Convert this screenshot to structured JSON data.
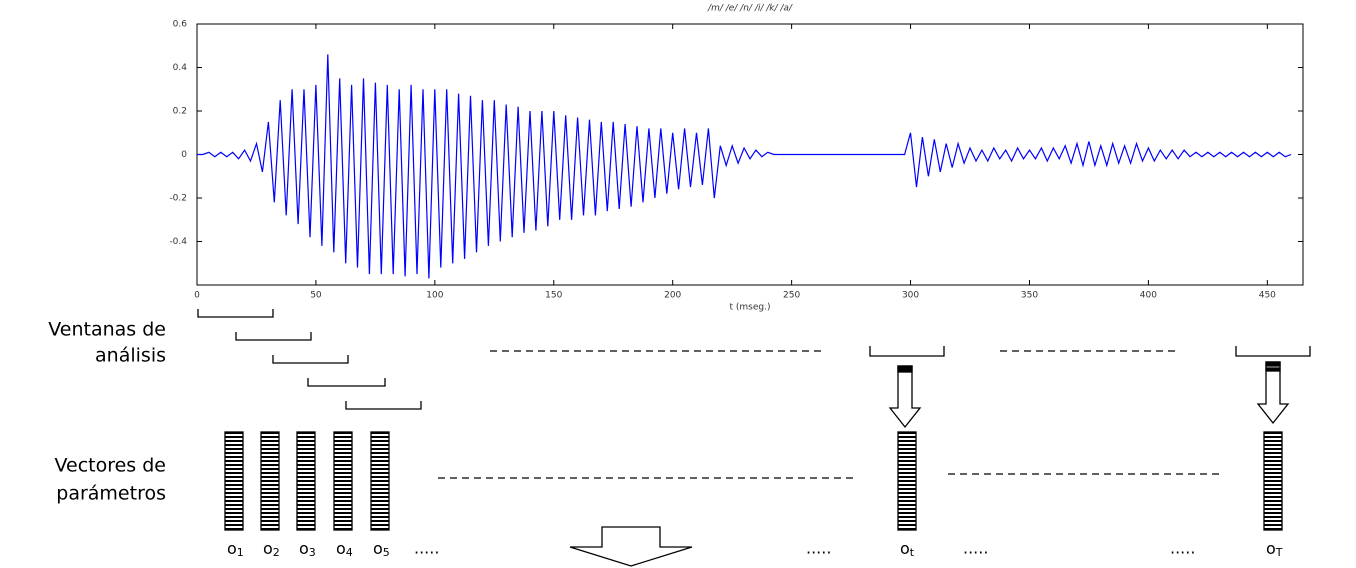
{
  "chart_data": {
    "type": "line",
    "title": "/m/ /e/ /n/ /i/ /k/ /a/",
    "x_label": "t (mseg.)",
    "xlim": [
      0,
      465
    ],
    "ylim": [
      -0.6,
      0.6
    ],
    "xticks": [
      0,
      50,
      100,
      150,
      200,
      250,
      300,
      350,
      400,
      450
    ],
    "yticks": [
      0.6,
      0.4,
      0.2,
      0,
      -0.2,
      -0.4
    ],
    "series": [
      {
        "color": "#0000ff",
        "x": [
          0,
          2.5,
          5,
          7.5,
          10,
          12.5,
          15,
          17.5,
          20,
          22.5,
          25,
          27.5,
          30,
          32.5,
          35,
          37.5,
          40,
          42.5,
          45,
          47.5,
          50,
          52.5,
          55,
          57.5,
          60,
          62.5,
          65,
          67.5,
          70,
          72.5,
          75,
          77.5,
          80,
          82.5,
          85,
          87.5,
          90,
          92.5,
          95,
          97.5,
          100,
          102.5,
          105,
          107.5,
          110,
          112.5,
          115,
          117.5,
          120,
          122.5,
          125,
          127.5,
          130,
          132.5,
          135,
          137.5,
          140,
          142.5,
          145,
          147.5,
          150,
          152.5,
          155,
          157.5,
          160,
          162.5,
          165,
          167.5,
          170,
          172.5,
          175,
          177.5,
          180,
          182.5,
          185,
          187.5,
          190,
          192.5,
          195,
          197.5,
          200,
          202.5,
          205,
          207.5,
          210,
          212.5,
          215,
          217.5,
          220,
          222.5,
          225,
          227.5,
          230,
          232.5,
          235,
          237.5,
          240,
          242.5,
          245,
          247.5,
          250,
          252.5,
          255,
          257.5,
          260,
          262.5,
          265,
          267.5,
          270,
          272.5,
          275,
          277.5,
          280,
          282.5,
          285,
          287.5,
          290,
          292.5,
          295,
          297.5,
          300,
          302.5,
          305,
          307.5,
          310,
          312.5,
          315,
          317.5,
          320,
          322.5,
          325,
          327.5,
          330,
          332.5,
          335,
          337.5,
          340,
          342.5,
          345,
          347.5,
          350,
          352.5,
          355,
          357.5,
          360,
          362.5,
          365,
          367.5,
          370,
          372.5,
          375,
          377.5,
          380,
          382.5,
          385,
          387.5,
          390,
          392.5,
          395,
          397.5,
          400,
          402.5,
          405,
          407.5,
          410,
          412.5,
          415,
          417.5,
          420,
          422.5,
          425,
          427.5,
          430,
          432.5,
          435,
          437.5,
          440,
          442.5,
          445,
          447.5,
          450,
          452.5,
          455,
          457.5,
          460
        ],
        "values": [
          0,
          0,
          0.01,
          -0.01,
          0.01,
          -0.01,
          0.01,
          -0.02,
          0.02,
          -0.03,
          0.05,
          -0.08,
          0.15,
          -0.22,
          0.25,
          -0.28,
          0.3,
          -0.32,
          0.3,
          -0.38,
          0.32,
          -0.42,
          0.46,
          -0.45,
          0.35,
          -0.5,
          0.32,
          -0.52,
          0.35,
          -0.55,
          0.33,
          -0.55,
          0.32,
          -0.55,
          0.3,
          -0.56,
          0.32,
          -0.55,
          0.3,
          -0.57,
          0.3,
          -0.52,
          0.3,
          -0.5,
          0.28,
          -0.48,
          0.27,
          -0.45,
          0.25,
          -0.42,
          0.25,
          -0.4,
          0.23,
          -0.38,
          0.22,
          -0.36,
          0.2,
          -0.35,
          0.2,
          -0.33,
          0.2,
          -0.3,
          0.18,
          -0.3,
          0.17,
          -0.28,
          0.16,
          -0.28,
          0.15,
          -0.26,
          0.15,
          -0.25,
          0.14,
          -0.24,
          0.13,
          -0.22,
          0.12,
          -0.2,
          0.12,
          -0.18,
          0.1,
          -0.16,
          0.12,
          -0.15,
          0.1,
          -0.14,
          0.12,
          -0.2,
          0.04,
          -0.05,
          0.04,
          -0.04,
          0.03,
          -0.02,
          0.02,
          -0.01,
          0.01,
          0,
          0,
          0,
          0,
          0,
          0,
          0,
          0,
          0,
          0,
          0,
          0,
          0,
          0,
          0,
          0,
          0,
          0,
          0,
          0,
          0,
          0,
          0,
          0.1,
          -0.15,
          0.08,
          -0.1,
          0.07,
          -0.08,
          0.05,
          -0.06,
          0.05,
          -0.04,
          0.03,
          -0.03,
          0.02,
          -0.03,
          0.03,
          -0.02,
          0.02,
          -0.03,
          0.03,
          -0.02,
          0.02,
          -0.02,
          0.03,
          -0.03,
          0.03,
          -0.02,
          0.04,
          -0.04,
          0.05,
          -0.05,
          0.06,
          -0.05,
          0.04,
          -0.05,
          0.05,
          -0.04,
          0.04,
          -0.04,
          0.05,
          -0.03,
          0.03,
          -0.03,
          0.02,
          -0.02,
          0.02,
          -0.02,
          0.02,
          -0.01,
          0.01,
          -0.01,
          0.01,
          -0.01,
          0.01,
          -0.01,
          0.01,
          -0.01,
          0.01,
          -0.01,
          0.01,
          -0.01,
          0.01,
          -0.01,
          0.01,
          -0.01,
          0
        ]
      }
    ]
  },
  "diagram": {
    "windows_label": [
      "Ventanas de",
      "análisis"
    ],
    "vectors_label": [
      "Vectores de",
      "parámetros"
    ],
    "vectors": [
      {
        "symbol": "o",
        "sub": "1"
      },
      {
        "symbol": "o",
        "sub": "2"
      },
      {
        "symbol": "o",
        "sub": "3"
      },
      {
        "symbol": "o",
        "sub": "4"
      },
      {
        "symbol": "o",
        "sub": "5"
      },
      {
        "symbol": "o",
        "sub": "t"
      },
      {
        "symbol": "o",
        "sub": "T"
      }
    ],
    "ellipses": [
      ".....",
      ".....",
      ".....",
      "....."
    ]
  }
}
